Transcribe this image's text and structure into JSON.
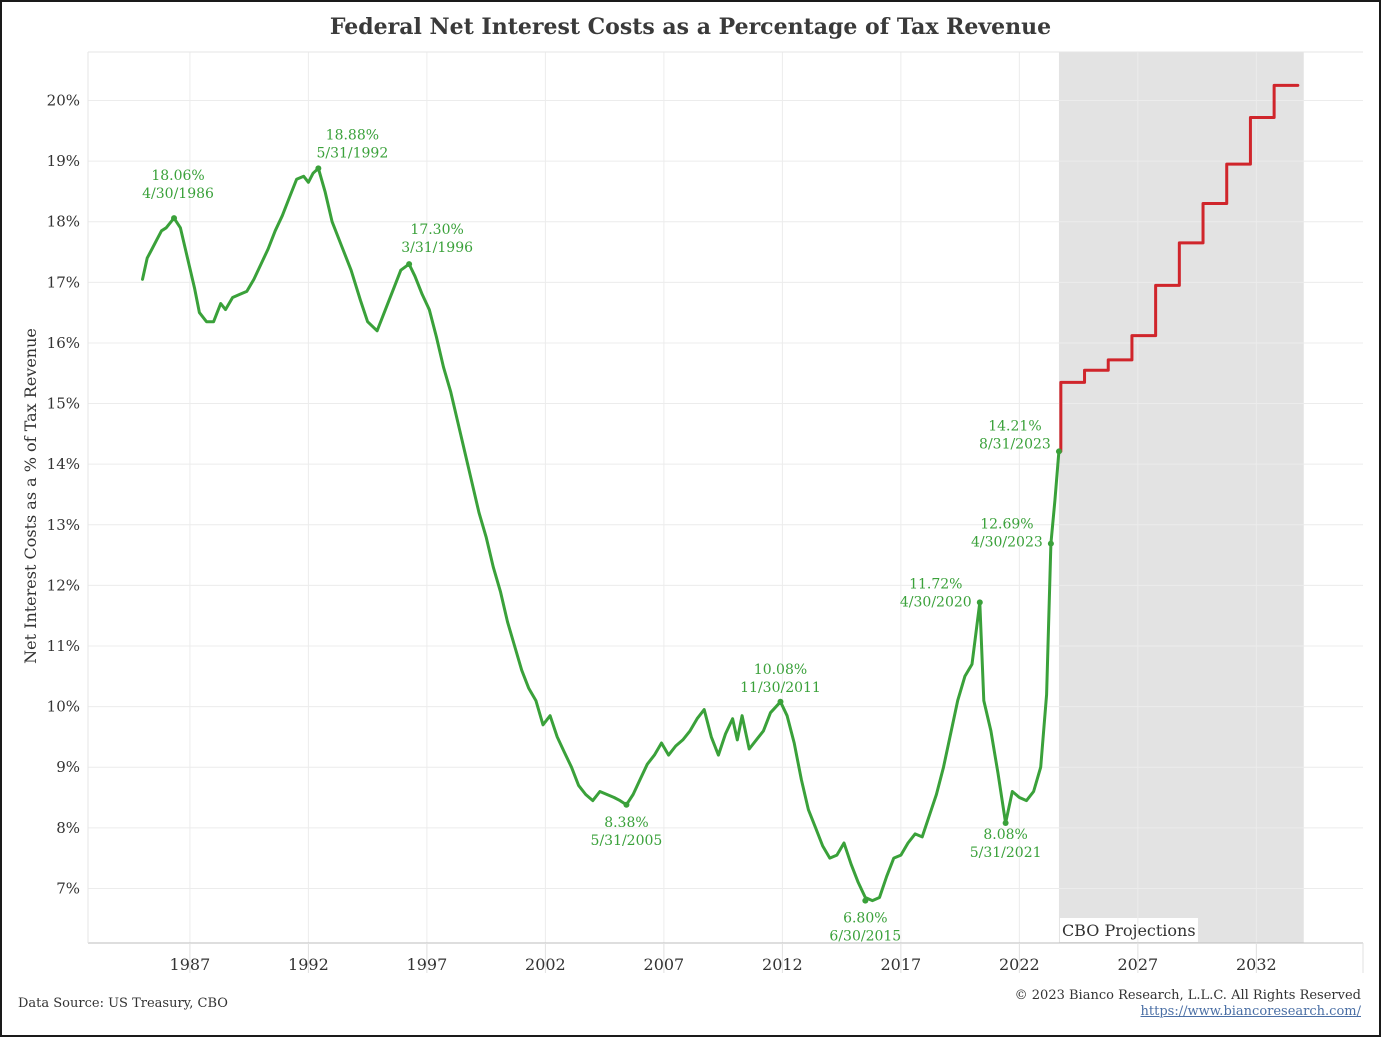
{
  "chart_data": {
    "type": "line",
    "title": "Federal Net Interest Costs as a Percentage of Tax Revenue",
    "ylabel": "Net Interest Costs as a % of Tax Revenue",
    "xlabel": "",
    "x_ticks": [
      "1987",
      "1992",
      "1997",
      "2002",
      "2007",
      "2012",
      "2017",
      "2022",
      "2027",
      "2032"
    ],
    "y_ticks": [
      "7%",
      "8%",
      "9%",
      "10%",
      "11%",
      "12%",
      "13%",
      "14%",
      "15%",
      "16%",
      "17%",
      "18%",
      "19%",
      "20%"
    ],
    "xlim": [
      1982.7,
      2036.5
    ],
    "ylim": [
      6.1,
      20.8
    ],
    "grid": true,
    "shaded_region": {
      "label": "CBO Projections",
      "x_start": 2023.67,
      "x_end": 2034.0,
      "color": "#e3e3e3"
    },
    "series": [
      {
        "color": "#3aa13a",
        "x": [
          1985.0,
          1985.2,
          1985.4,
          1985.6,
          1985.8,
          1986.0,
          1986.33,
          1986.6,
          1986.9,
          1987.2,
          1987.4,
          1987.7,
          1988.0,
          1988.3,
          1988.5,
          1988.8,
          1989.1,
          1989.4,
          1989.7,
          1990.0,
          1990.3,
          1990.6,
          1990.9,
          1991.2,
          1991.5,
          1991.8,
          1992.0,
          1992.2,
          1992.42,
          1992.7,
          1993.0,
          1993.4,
          1993.8,
          1994.2,
          1994.5,
          1994.9,
          1995.3,
          1995.6,
          1995.9,
          1996.25,
          1996.5,
          1996.8,
          1997.1,
          1997.4,
          1997.7,
          1998.0,
          1998.3,
          1998.6,
          1998.9,
          1999.2,
          1999.5,
          1999.8,
          2000.1,
          2000.4,
          2000.7,
          2001.0,
          2001.3,
          2001.6,
          2001.9,
          2002.2,
          2002.5,
          2002.8,
          2003.1,
          2003.4,
          2003.7,
          2004.0,
          2004.3,
          2004.6,
          2004.9,
          2005.15,
          2005.42,
          2005.7,
          2006.0,
          2006.3,
          2006.6,
          2006.9,
          2007.2,
          2007.5,
          2007.8,
          2008.1,
          2008.4,
          2008.7,
          2009.0,
          2009.3,
          2009.6,
          2009.9,
          2010.1,
          2010.3,
          2010.6,
          2010.9,
          2011.2,
          2011.5,
          2011.92,
          2012.2,
          2012.5,
          2012.8,
          2013.1,
          2013.4,
          2013.7,
          2014.0,
          2014.3,
          2014.6,
          2014.9,
          2015.2,
          2015.5,
          2015.8,
          2016.1,
          2016.4,
          2016.7,
          2017.0,
          2017.3,
          2017.6,
          2017.9,
          2018.2,
          2018.5,
          2018.8,
          2019.1,
          2019.4,
          2019.7,
          2020.0,
          2020.33,
          2020.5,
          2020.8,
          2021.1,
          2021.42,
          2021.7,
          2022.0,
          2022.3,
          2022.6,
          2022.9,
          2023.15,
          2023.33,
          2023.5,
          2023.67
        ],
        "y": [
          17.05,
          17.4,
          17.55,
          17.7,
          17.85,
          17.9,
          18.06,
          17.9,
          17.4,
          16.9,
          16.5,
          16.35,
          16.35,
          16.65,
          16.55,
          16.75,
          16.8,
          16.85,
          17.05,
          17.3,
          17.55,
          17.85,
          18.1,
          18.4,
          18.7,
          18.75,
          18.65,
          18.8,
          18.88,
          18.5,
          18.0,
          17.6,
          17.2,
          16.7,
          16.35,
          16.2,
          16.6,
          16.9,
          17.2,
          17.3,
          17.1,
          16.8,
          16.55,
          16.1,
          15.6,
          15.2,
          14.7,
          14.2,
          13.7,
          13.2,
          12.8,
          12.3,
          11.9,
          11.4,
          11.0,
          10.6,
          10.3,
          10.1,
          9.7,
          9.85,
          9.5,
          9.25,
          9.0,
          8.7,
          8.55,
          8.45,
          8.6,
          8.55,
          8.5,
          8.45,
          8.38,
          8.55,
          8.8,
          9.05,
          9.2,
          9.4,
          9.2,
          9.35,
          9.45,
          9.6,
          9.8,
          9.95,
          9.5,
          9.2,
          9.55,
          9.8,
          9.45,
          9.85,
          9.3,
          9.45,
          9.6,
          9.9,
          10.08,
          9.85,
          9.4,
          8.8,
          8.3,
          8.0,
          7.7,
          7.5,
          7.55,
          7.75,
          7.4,
          7.1,
          6.85,
          6.8,
          6.85,
          7.2,
          7.5,
          7.55,
          7.75,
          7.9,
          7.85,
          8.2,
          8.55,
          9.0,
          9.55,
          10.1,
          10.5,
          10.7,
          11.72,
          10.1,
          9.6,
          8.9,
          8.08,
          8.6,
          8.5,
          8.45,
          8.6,
          9.0,
          10.2,
          12.69,
          13.4,
          14.21
        ]
      },
      {
        "color": "#d0252b",
        "x": [
          2023.67,
          2023.75,
          2024.75,
          2025.75,
          2026.75,
          2027.75,
          2028.75,
          2029.75,
          2030.75,
          2031.75,
          2032.75,
          2033.75
        ],
        "y": [
          14.21,
          15.35,
          15.55,
          15.72,
          16.12,
          16.95,
          17.65,
          18.3,
          18.95,
          19.72,
          20.25,
          20.25
        ]
      }
    ],
    "annotations": [
      {
        "value": "18.06%",
        "date": "4/30/1986",
        "x": 1986.33,
        "y": 18.06
      },
      {
        "value": "18.88%",
        "date": "5/31/1992",
        "x": 1992.42,
        "y": 18.88
      },
      {
        "value": "17.30%",
        "date": "3/31/1996",
        "x": 1996.25,
        "y": 17.3
      },
      {
        "value": "8.38%",
        "date": "5/31/2005",
        "x": 2005.42,
        "y": 8.38
      },
      {
        "value": "10.08%",
        "date": "11/30/2011",
        "x": 2011.92,
        "y": 10.08
      },
      {
        "value": "6.80%",
        "date": "6/30/2015",
        "x": 2015.5,
        "y": 6.8
      },
      {
        "value": "11.72%",
        "date": "4/30/2020",
        "x": 2020.33,
        "y": 11.72
      },
      {
        "value": "8.08%",
        "date": "5/31/2021",
        "x": 2021.42,
        "y": 8.08
      },
      {
        "value": "12.69%",
        "date": "4/30/2023",
        "x": 2023.33,
        "y": 12.69
      },
      {
        "value": "14.21%",
        "date": "8/31/2023",
        "x": 2023.67,
        "y": 14.21
      }
    ]
  },
  "footer": {
    "source": "Data Source: US Treasury, CBO",
    "copyright": "© 2023 Bianco Research, L.L.C. All Rights Reserved",
    "url": "https://www.biancoresearch.com/"
  }
}
